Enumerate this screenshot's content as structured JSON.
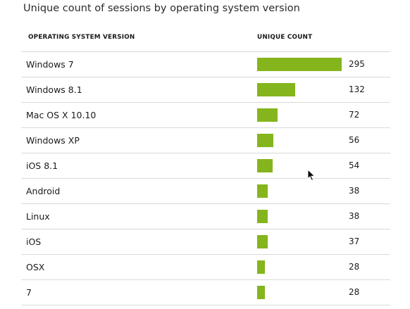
{
  "title": "Unique count of sessions by operating system version",
  "columns": {
    "name": "OPERATING SYSTEM VERSION",
    "count": "UNIQUE COUNT"
  },
  "colors": {
    "bar": "#84b51c",
    "divider": "#d9d9d9"
  },
  "rows": [
    {
      "name": "Windows 7",
      "count": 295
    },
    {
      "name": "Windows 8.1",
      "count": 132
    },
    {
      "name": "Mac OS X 10.10",
      "count": 72
    },
    {
      "name": "Windows XP",
      "count": 56
    },
    {
      "name": "iOS 8.1",
      "count": 54
    },
    {
      "name": "Android",
      "count": 38
    },
    {
      "name": "Linux",
      "count": 38
    },
    {
      "name": "iOS",
      "count": 37
    },
    {
      "name": "OSX",
      "count": 28
    },
    {
      "name": "7",
      "count": 28
    }
  ]
}
